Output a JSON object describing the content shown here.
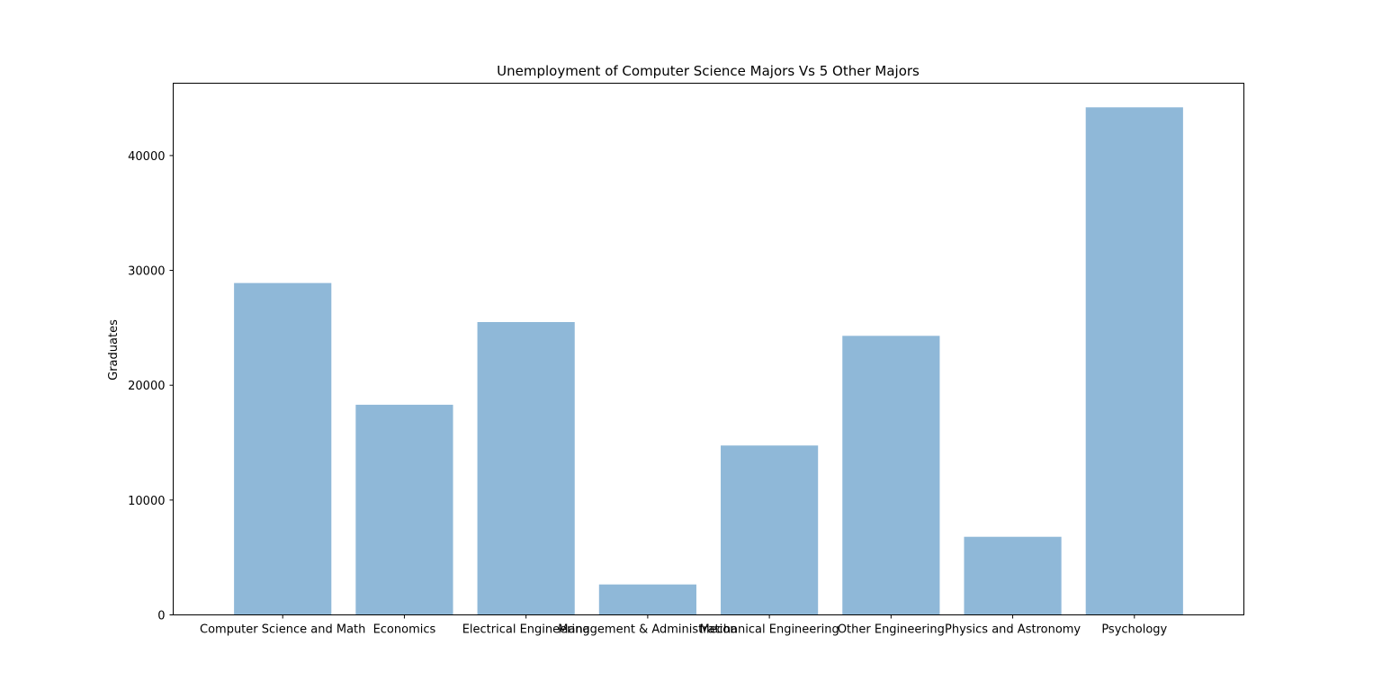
{
  "chart_data": {
    "type": "bar",
    "title": "Unemployment of Computer Science Majors Vs 5 Other Majors",
    "xlabel": "",
    "ylabel": "Graduates",
    "categories": [
      "Computer Science and Math",
      "Economics",
      "Electrical Engineering",
      "Management & Administration",
      "Mechanical Engineering",
      "Other Engineering",
      "Physics and Astronomy",
      "Psychology"
    ],
    "values": [
      28900,
      18300,
      25500,
      2650,
      14750,
      24300,
      6800,
      44200
    ],
    "ylim": [
      0,
      46300
    ],
    "yticks": [
      0,
      10000,
      20000,
      30000,
      40000
    ],
    "grid": false,
    "bar_color": "#8fb8d8"
  }
}
